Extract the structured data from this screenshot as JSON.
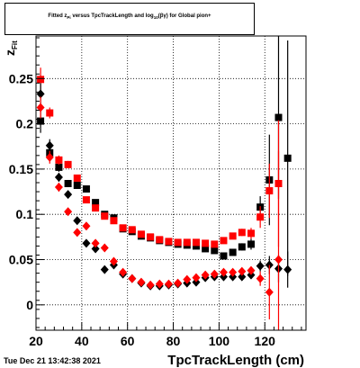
{
  "chart_data": {
    "type": "scatter",
    "title": {
      "prefix": "Fitted  z",
      "sub1": "Pi",
      "middle": "  versus TpcTrackLength and log",
      "sub2": "10",
      "suffix": "(βγ) for Global pion+"
    },
    "xlabel": "TpcTrackLength (cm)",
    "ylabel_main": "z",
    "ylabel_sub": "Fit",
    "timestamp": "Tue Dec 21 13:42:38 2021",
    "xlim": [
      20,
      138
    ],
    "ylim": [
      -0.028,
      0.297
    ],
    "x_ticks": [
      20,
      40,
      60,
      80,
      100,
      120
    ],
    "y_ticks": [
      0,
      0.05,
      0.1,
      0.15,
      0.2,
      0.25
    ],
    "y_tick_labels": [
      "0",
      "0.05",
      "0.1",
      "0.15",
      "0.2",
      "0.25"
    ],
    "grid": true,
    "series": [
      {
        "marker": "square",
        "color": "#000000",
        "points": [
          {
            "x": 22,
            "y": 0.203,
            "err": 0.013
          },
          {
            "x": 26,
            "y": 0.168,
            "err": 0.007
          },
          {
            "x": 30,
            "y": 0.152,
            "err": 0.005
          },
          {
            "x": 34,
            "y": 0.134,
            "err": 0.004
          },
          {
            "x": 38,
            "y": 0.132,
            "err": 0.003
          },
          {
            "x": 42,
            "y": 0.128,
            "err": 0.003
          },
          {
            "x": 46,
            "y": 0.113,
            "err": 0.003
          },
          {
            "x": 50,
            "y": 0.1,
            "err": 0.002
          },
          {
            "x": 54,
            "y": 0.096,
            "err": 0.002
          },
          {
            "x": 58,
            "y": 0.084,
            "err": 0.002
          },
          {
            "x": 62,
            "y": 0.081,
            "err": 0.002
          },
          {
            "x": 66,
            "y": 0.076,
            "err": 0.002
          },
          {
            "x": 70,
            "y": 0.074,
            "err": 0.002
          },
          {
            "x": 74,
            "y": 0.071,
            "err": 0.002
          },
          {
            "x": 78,
            "y": 0.069,
            "err": 0.002
          },
          {
            "x": 82,
            "y": 0.067,
            "err": 0.002
          },
          {
            "x": 86,
            "y": 0.066,
            "err": 0.002
          },
          {
            "x": 90,
            "y": 0.065,
            "err": 0.002
          },
          {
            "x": 94,
            "y": 0.062,
            "err": 0.002
          },
          {
            "x": 98,
            "y": 0.06,
            "err": 0.002
          },
          {
            "x": 102,
            "y": 0.054,
            "err": 0.003
          },
          {
            "x": 106,
            "y": 0.058,
            "err": 0.003
          },
          {
            "x": 110,
            "y": 0.064,
            "err": 0.004
          },
          {
            "x": 114,
            "y": 0.067,
            "err": 0.006
          },
          {
            "x": 118,
            "y": 0.108,
            "err": 0.012
          },
          {
            "x": 122,
            "y": 0.138,
            "err": 0.05
          },
          {
            "x": 126,
            "y": 0.207,
            "err": 0.09
          },
          {
            "x": 130,
            "y": 0.162,
            "err": 0.13
          }
        ]
      },
      {
        "marker": "square",
        "color": "#ff0000",
        "points": [
          {
            "x": 22,
            "y": 0.249,
            "err": 0.013
          },
          {
            "x": 26,
            "y": 0.212,
            "err": 0.006
          },
          {
            "x": 30,
            "y": 0.16,
            "err": 0.005
          },
          {
            "x": 34,
            "y": 0.155,
            "err": 0.004
          },
          {
            "x": 38,
            "y": 0.14,
            "err": 0.003
          },
          {
            "x": 42,
            "y": 0.116,
            "err": 0.003
          },
          {
            "x": 46,
            "y": 0.107,
            "err": 0.003
          },
          {
            "x": 50,
            "y": 0.098,
            "err": 0.002
          },
          {
            "x": 54,
            "y": 0.093,
            "err": 0.002
          },
          {
            "x": 58,
            "y": 0.085,
            "err": 0.002
          },
          {
            "x": 62,
            "y": 0.083,
            "err": 0.002
          },
          {
            "x": 66,
            "y": 0.078,
            "err": 0.002
          },
          {
            "x": 70,
            "y": 0.075,
            "err": 0.002
          },
          {
            "x": 74,
            "y": 0.072,
            "err": 0.002
          },
          {
            "x": 78,
            "y": 0.07,
            "err": 0.002
          },
          {
            "x": 82,
            "y": 0.069,
            "err": 0.002
          },
          {
            "x": 86,
            "y": 0.069,
            "err": 0.002
          },
          {
            "x": 90,
            "y": 0.069,
            "err": 0.002
          },
          {
            "x": 94,
            "y": 0.068,
            "err": 0.002
          },
          {
            "x": 98,
            "y": 0.067,
            "err": 0.002
          },
          {
            "x": 102,
            "y": 0.071,
            "err": 0.003
          },
          {
            "x": 106,
            "y": 0.076,
            "err": 0.003
          },
          {
            "x": 110,
            "y": 0.08,
            "err": 0.004
          },
          {
            "x": 114,
            "y": 0.079,
            "err": 0.006
          },
          {
            "x": 118,
            "y": 0.097,
            "err": 0.012
          },
          {
            "x": 122,
            "y": 0.126,
            "err": 0.03
          },
          {
            "x": 126,
            "y": 0.134,
            "err": 0.07
          }
        ]
      },
      {
        "marker": "diamond",
        "color": "#000000",
        "points": [
          {
            "x": 22,
            "y": 0.233,
            "err": 0.012
          },
          {
            "x": 26,
            "y": 0.176,
            "err": 0.007
          },
          {
            "x": 30,
            "y": 0.141,
            "err": 0.005
          },
          {
            "x": 34,
            "y": 0.122,
            "err": 0.004
          },
          {
            "x": 38,
            "y": 0.093,
            "err": 0.003
          },
          {
            "x": 42,
            "y": 0.068,
            "err": 0.003
          },
          {
            "x": 46,
            "y": 0.062,
            "err": 0.002
          },
          {
            "x": 50,
            "y": 0.039,
            "err": 0.002
          },
          {
            "x": 54,
            "y": 0.044,
            "err": 0.002
          },
          {
            "x": 58,
            "y": 0.034,
            "err": 0.002
          },
          {
            "x": 62,
            "y": 0.029,
            "err": 0.002
          },
          {
            "x": 66,
            "y": 0.024,
            "err": 0.002
          },
          {
            "x": 70,
            "y": 0.021,
            "err": 0.002
          },
          {
            "x": 74,
            "y": 0.021,
            "err": 0.002
          },
          {
            "x": 78,
            "y": 0.022,
            "err": 0.002
          },
          {
            "x": 82,
            "y": 0.023,
            "err": 0.002
          },
          {
            "x": 86,
            "y": 0.024,
            "err": 0.002
          },
          {
            "x": 90,
            "y": 0.025,
            "err": 0.002
          },
          {
            "x": 94,
            "y": 0.03,
            "err": 0.002
          },
          {
            "x": 98,
            "y": 0.031,
            "err": 0.002
          },
          {
            "x": 102,
            "y": 0.031,
            "err": 0.002
          },
          {
            "x": 106,
            "y": 0.031,
            "err": 0.003
          },
          {
            "x": 110,
            "y": 0.031,
            "err": 0.003
          },
          {
            "x": 114,
            "y": 0.033,
            "err": 0.004
          },
          {
            "x": 118,
            "y": 0.043,
            "err": 0.006
          },
          {
            "x": 122,
            "y": 0.044,
            "err": 0.01
          },
          {
            "x": 126,
            "y": 0.04,
            "err": 0.015
          },
          {
            "x": 130,
            "y": 0.039,
            "err": 0.02
          }
        ]
      },
      {
        "marker": "diamond",
        "color": "#ff0000",
        "points": [
          {
            "x": 22,
            "y": 0.218,
            "err": 0.012
          },
          {
            "x": 26,
            "y": 0.163,
            "err": 0.007
          },
          {
            "x": 30,
            "y": 0.13,
            "err": 0.005
          },
          {
            "x": 34,
            "y": 0.103,
            "err": 0.004
          },
          {
            "x": 38,
            "y": 0.08,
            "err": 0.003
          },
          {
            "x": 42,
            "y": 0.087,
            "err": 0.003
          },
          {
            "x": 46,
            "y": 0.068,
            "err": 0.002
          },
          {
            "x": 50,
            "y": 0.063,
            "err": 0.002
          },
          {
            "x": 54,
            "y": 0.048,
            "err": 0.002
          },
          {
            "x": 58,
            "y": 0.036,
            "err": 0.002
          },
          {
            "x": 62,
            "y": 0.029,
            "err": 0.002
          },
          {
            "x": 66,
            "y": 0.025,
            "err": 0.002
          },
          {
            "x": 70,
            "y": 0.022,
            "err": 0.002
          },
          {
            "x": 74,
            "y": 0.023,
            "err": 0.002
          },
          {
            "x": 78,
            "y": 0.023,
            "err": 0.002
          },
          {
            "x": 82,
            "y": 0.024,
            "err": 0.002
          },
          {
            "x": 86,
            "y": 0.028,
            "err": 0.002
          },
          {
            "x": 90,
            "y": 0.03,
            "err": 0.002
          },
          {
            "x": 94,
            "y": 0.033,
            "err": 0.002
          },
          {
            "x": 98,
            "y": 0.034,
            "err": 0.002
          },
          {
            "x": 102,
            "y": 0.036,
            "err": 0.002
          },
          {
            "x": 106,
            "y": 0.036,
            "err": 0.003
          },
          {
            "x": 110,
            "y": 0.037,
            "err": 0.003
          },
          {
            "x": 114,
            "y": 0.038,
            "err": 0.004
          },
          {
            "x": 118,
            "y": 0.029,
            "err": 0.008
          },
          {
            "x": 122,
            "y": 0.014,
            "err": 0.03
          },
          {
            "x": 126,
            "y": 0.05,
            "err": 0.12
          }
        ]
      }
    ]
  }
}
